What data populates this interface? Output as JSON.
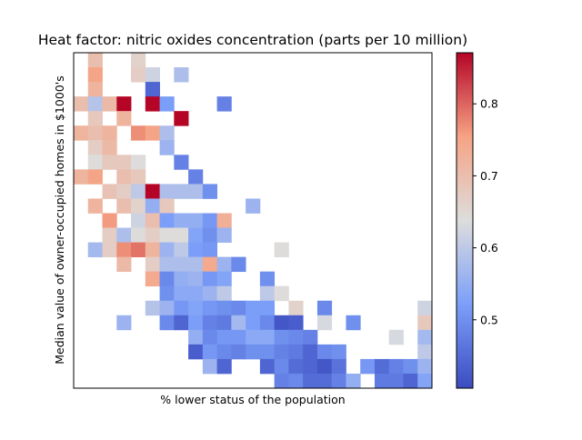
{
  "chart_data": {
    "type": "heatmap",
    "title": "Heat factor: nitric oxides concentration (parts per 10 million)",
    "xlabel": "% lower status of the population",
    "ylabel": "Median value of owner-occupied homes in $1000's",
    "x_ticks_shown": false,
    "y_ticks_shown": false,
    "colormap": "coolwarm",
    "color_range": [
      0.405,
      0.871
    ],
    "colorbar_ticks": [
      0.5,
      0.6,
      0.7,
      0.8
    ],
    "colorbar_labels": [
      "0.5",
      "0.6",
      "0.7",
      "0.8"
    ],
    "grid_size": {
      "rows": 23,
      "cols": 25
    },
    "cells": [
      [
        1,
        0,
        0.7
      ],
      [
        4,
        0,
        0.66
      ],
      [
        1,
        1,
        0.75
      ],
      [
        4,
        1,
        0.67
      ],
      [
        5,
        1,
        0.62
      ],
      [
        7,
        1,
        0.58
      ],
      [
        1,
        2,
        0.72
      ],
      [
        5,
        2,
        0.44
      ],
      [
        0,
        3,
        0.7
      ],
      [
        1,
        3,
        0.59
      ],
      [
        2,
        3,
        0.71
      ],
      [
        3,
        3,
        0.87
      ],
      [
        5,
        3,
        0.87
      ],
      [
        6,
        3,
        0.52
      ],
      [
        10,
        3,
        0.48
      ],
      [
        1,
        4,
        0.68
      ],
      [
        3,
        4,
        0.72
      ],
      [
        7,
        4,
        0.87
      ],
      [
        0,
        5,
        0.72
      ],
      [
        1,
        5,
        0.7
      ],
      [
        2,
        5,
        0.72
      ],
      [
        4,
        5,
        0.77
      ],
      [
        5,
        5,
        0.75
      ],
      [
        6,
        5,
        0.58
      ],
      [
        1,
        6,
        0.67
      ],
      [
        2,
        6,
        0.71
      ],
      [
        6,
        6,
        0.56
      ],
      [
        1,
        7,
        0.64
      ],
      [
        2,
        7,
        0.68
      ],
      [
        3,
        7,
        0.68
      ],
      [
        4,
        7,
        0.64
      ],
      [
        7,
        7,
        0.48
      ],
      [
        0,
        8,
        0.72
      ],
      [
        1,
        8,
        0.75
      ],
      [
        3,
        8,
        0.7
      ],
      [
        4,
        8,
        0.68
      ],
      [
        8,
        8,
        0.48
      ],
      [
        2,
        9,
        0.69
      ],
      [
        3,
        9,
        0.67
      ],
      [
        4,
        9,
        0.6
      ],
      [
        5,
        9,
        0.87
      ],
      [
        6,
        9,
        0.58
      ],
      [
        7,
        9,
        0.58
      ],
      [
        8,
        9,
        0.58
      ],
      [
        9,
        9,
        0.5
      ],
      [
        1,
        10,
        0.72
      ],
      [
        3,
        10,
        0.7
      ],
      [
        4,
        10,
        0.66
      ],
      [
        5,
        10,
        0.55
      ],
      [
        6,
        10,
        0.68
      ],
      [
        12,
        10,
        0.56
      ],
      [
        2,
        11,
        0.76
      ],
      [
        4,
        11,
        0.62
      ],
      [
        5,
        11,
        0.7
      ],
      [
        6,
        11,
        0.52
      ],
      [
        7,
        11,
        0.55
      ],
      [
        8,
        11,
        0.55
      ],
      [
        9,
        11,
        0.51
      ],
      [
        10,
        11,
        0.73
      ],
      [
        2,
        12,
        0.67
      ],
      [
        3,
        12,
        0.58
      ],
      [
        4,
        12,
        0.64
      ],
      [
        5,
        12,
        0.67
      ],
      [
        6,
        12,
        0.64
      ],
      [
        7,
        12,
        0.64
      ],
      [
        8,
        12,
        0.53
      ],
      [
        9,
        12,
        0.5
      ],
      [
        10,
        12,
        0.56
      ],
      [
        1,
        13,
        0.57
      ],
      [
        2,
        13,
        0.67
      ],
      [
        3,
        13,
        0.77
      ],
      [
        4,
        13,
        0.79
      ],
      [
        5,
        13,
        0.72
      ],
      [
        6,
        13,
        0.56
      ],
      [
        7,
        13,
        0.6
      ],
      [
        8,
        13,
        0.52
      ],
      [
        9,
        13,
        0.51
      ],
      [
        14,
        13,
        0.64
      ],
      [
        3,
        14,
        0.71
      ],
      [
        5,
        14,
        0.67
      ],
      [
        6,
        14,
        0.58
      ],
      [
        7,
        14,
        0.58
      ],
      [
        8,
        14,
        0.58
      ],
      [
        9,
        14,
        0.74
      ],
      [
        10,
        14,
        0.56
      ],
      [
        11,
        14,
        0.49
      ],
      [
        5,
        15,
        0.74
      ],
      [
        6,
        15,
        0.49
      ],
      [
        7,
        15,
        0.55
      ],
      [
        8,
        15,
        0.56
      ],
      [
        9,
        15,
        0.51
      ],
      [
        10,
        15,
        0.53
      ],
      [
        13,
        15,
        0.5
      ],
      [
        6,
        16,
        0.5
      ],
      [
        7,
        16,
        0.54
      ],
      [
        8,
        16,
        0.54
      ],
      [
        9,
        16,
        0.56
      ],
      [
        10,
        16,
        0.6
      ],
      [
        13,
        16,
        0.6
      ],
      [
        14,
        16,
        0.64
      ],
      [
        5,
        17,
        0.59
      ],
      [
        6,
        17,
        0.56
      ],
      [
        7,
        17,
        0.51
      ],
      [
        8,
        17,
        0.53
      ],
      [
        9,
        17,
        0.51
      ],
      [
        10,
        17,
        0.5
      ],
      [
        11,
        17,
        0.49
      ],
      [
        12,
        17,
        0.52
      ],
      [
        13,
        17,
        0.52
      ],
      [
        15,
        17,
        0.66
      ],
      [
        17,
        17,
        0.49
      ],
      [
        24,
        17,
        0.62
      ],
      [
        3,
        18,
        0.56
      ],
      [
        6,
        18,
        0.49
      ],
      [
        7,
        18,
        0.44
      ],
      [
        8,
        18,
        0.52
      ],
      [
        9,
        18,
        0.48
      ],
      [
        10,
        18,
        0.47
      ],
      [
        11,
        18,
        0.57
      ],
      [
        12,
        18,
        0.52
      ],
      [
        13,
        18,
        0.49
      ],
      [
        14,
        18,
        0.42
      ],
      [
        15,
        18,
        0.43
      ],
      [
        17,
        18,
        0.63
      ],
      [
        19,
        18,
        0.5
      ],
      [
        24,
        18,
        0.68
      ],
      [
        8,
        19,
        0.55
      ],
      [
        9,
        19,
        0.49
      ],
      [
        10,
        19,
        0.51
      ],
      [
        11,
        19,
        0.51
      ],
      [
        12,
        19,
        0.54
      ],
      [
        13,
        19,
        0.54
      ],
      [
        14,
        19,
        0.5
      ],
      [
        15,
        19,
        0.49
      ],
      [
        16,
        19,
        0.48
      ],
      [
        22,
        19,
        0.63
      ],
      [
        24,
        19,
        0.57
      ],
      [
        8,
        20,
        0.43
      ],
      [
        9,
        20,
        0.51
      ],
      [
        10,
        20,
        0.49
      ],
      [
        11,
        20,
        0.48
      ],
      [
        12,
        20,
        0.5
      ],
      [
        13,
        20,
        0.5
      ],
      [
        14,
        20,
        0.48
      ],
      [
        15,
        20,
        0.47
      ],
      [
        16,
        20,
        0.44
      ],
      [
        17,
        20,
        0.49
      ],
      [
        18,
        20,
        0.5
      ],
      [
        24,
        20,
        0.6
      ],
      [
        9,
        21,
        0.56
      ],
      [
        10,
        21,
        0.44
      ],
      [
        13,
        21,
        0.44
      ],
      [
        14,
        21,
        0.49
      ],
      [
        15,
        21,
        0.45
      ],
      [
        16,
        21,
        0.44
      ],
      [
        17,
        21,
        0.42
      ],
      [
        18,
        21,
        0.46
      ],
      [
        20,
        21,
        0.51
      ],
      [
        21,
        21,
        0.45
      ],
      [
        22,
        21,
        0.48
      ],
      [
        23,
        21,
        0.5
      ],
      [
        24,
        21,
        0.56
      ],
      [
        14,
        22,
        0.48
      ],
      [
        15,
        22,
        0.49
      ],
      [
        16,
        22,
        0.45
      ],
      [
        17,
        22,
        0.45
      ],
      [
        18,
        22,
        0.48
      ],
      [
        19,
        22,
        0.55
      ],
      [
        21,
        22,
        0.47
      ],
      [
        22,
        22,
        0.47
      ],
      [
        23,
        22,
        0.44
      ],
      [
        24,
        22,
        0.53
      ]
    ]
  }
}
